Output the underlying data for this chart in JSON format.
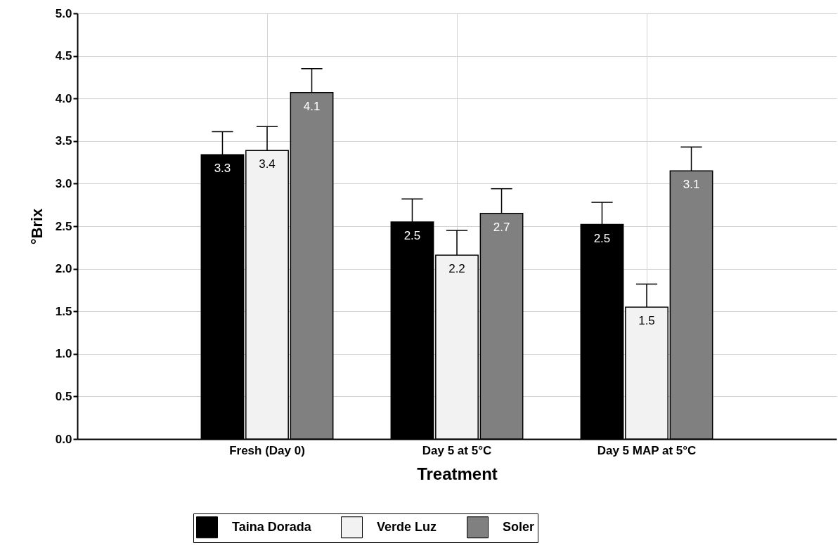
{
  "chart_data": {
    "type": "bar",
    "xlabel": "Treatment",
    "ylabel": "°Brix",
    "categories": [
      "Fresh (Day 0)",
      "Day 5 at 5°C",
      "Day 5 MAP at 5°C"
    ],
    "series": [
      {
        "name": "Taina Dorada",
        "color": "#000000",
        "values": [
          3.34,
          2.55,
          2.52
        ],
        "errors": [
          [
            3.34,
            3.61
          ],
          [
            2.55,
            2.82
          ],
          [
            2.52,
            2.78
          ]
        ],
        "value_labels": [
          "3.3",
          "2.5",
          "2.5"
        ]
      },
      {
        "name": "Verde Luz",
        "color": "#f2f2f2",
        "values": [
          3.39,
          2.16,
          1.55
        ],
        "errors": [
          [
            3.39,
            3.67
          ],
          [
            2.16,
            2.45
          ],
          [
            1.55,
            1.82
          ]
        ],
        "value_labels": [
          "3.4",
          "2.2",
          "1.5"
        ]
      },
      {
        "name": "Soler",
        "color": "#808080",
        "values": [
          4.07,
          2.65,
          3.15
        ],
        "errors": [
          [
            4.07,
            4.35
          ],
          [
            2.65,
            2.94
          ],
          [
            3.15,
            3.43
          ]
        ],
        "value_labels": [
          "4.1",
          "2.7",
          "3.1"
        ]
      }
    ],
    "ylim": [
      0,
      5
    ],
    "yticks": [
      {
        "value": 0,
        "label": "0.0"
      },
      {
        "value": 0.5,
        "label": "0.5"
      },
      {
        "value": 1,
        "label": "1.0"
      },
      {
        "value": 1.5,
        "label": "1.5"
      },
      {
        "value": 2,
        "label": "2.0"
      },
      {
        "value": 2.5,
        "label": "2.5"
      },
      {
        "value": 3,
        "label": "3.0"
      },
      {
        "value": 3.5,
        "label": "3.5"
      },
      {
        "value": 4,
        "label": "4.0"
      },
      {
        "value": 4.5,
        "label": "4.5"
      },
      {
        "value": 5,
        "label": "5.0"
      }
    ],
    "grid": true,
    "legend": "bottom"
  }
}
